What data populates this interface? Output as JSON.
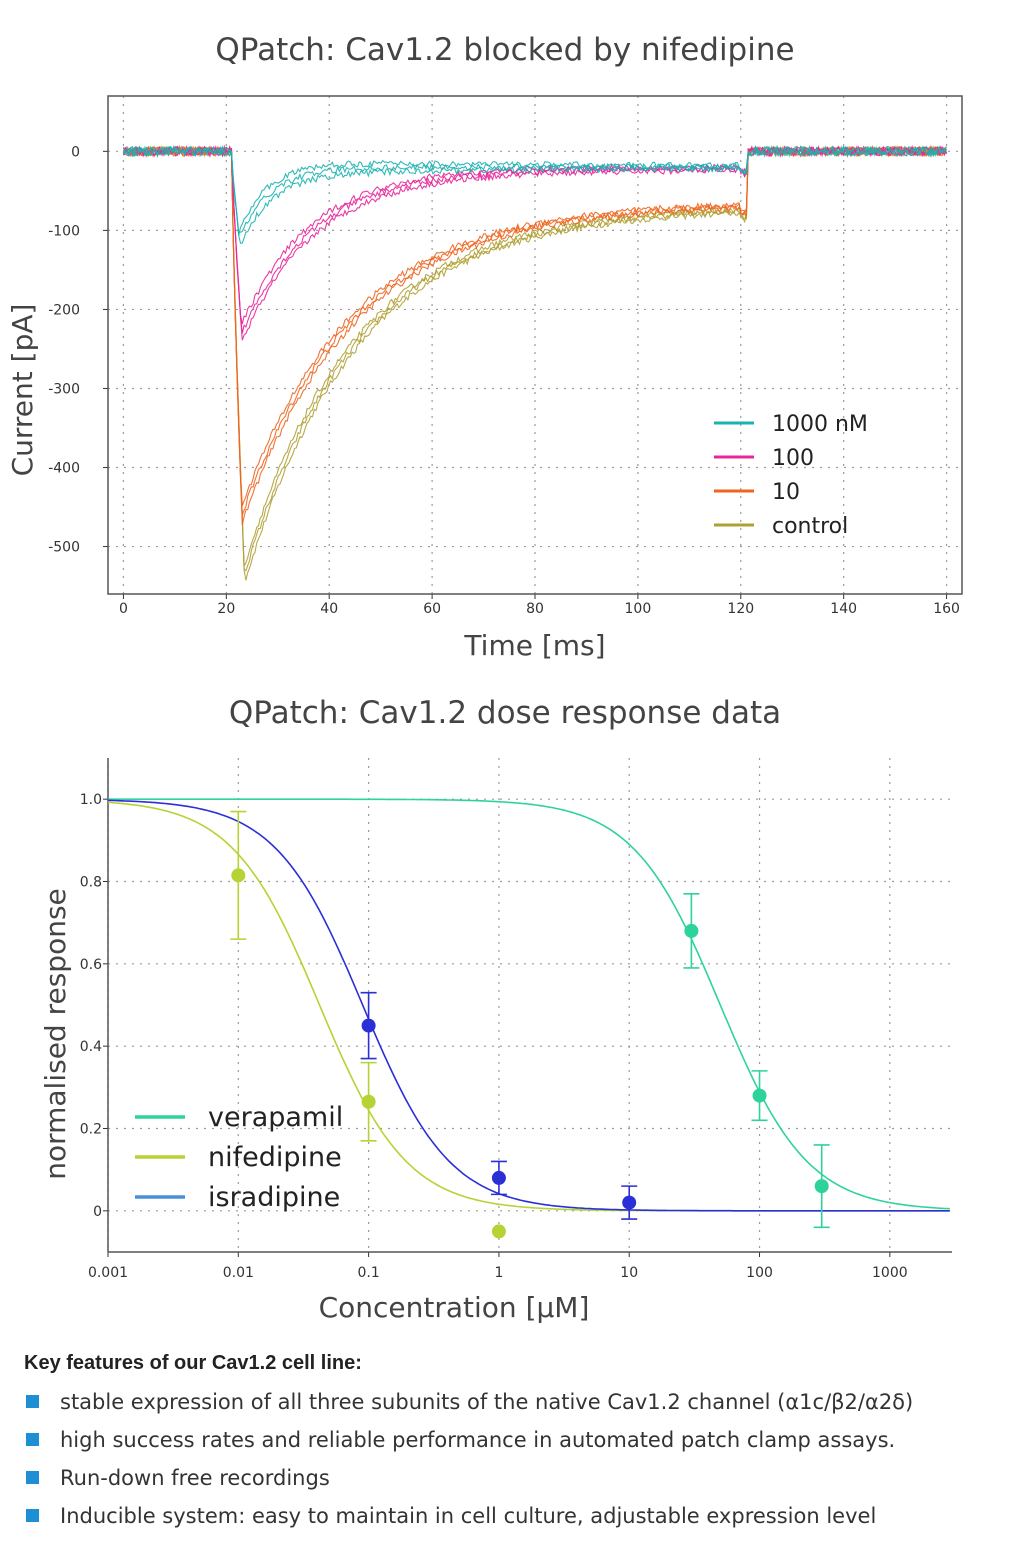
{
  "chart_data": [
    {
      "type": "line",
      "title": "QPatch: Cav1.2 blocked by nifedipine",
      "xlabel": "Time [ms]",
      "ylabel": "Current [pA]",
      "xlim": [
        -3,
        163
      ],
      "ylim": [
        -560,
        70
      ],
      "xticks": [
        0,
        20,
        40,
        60,
        80,
        100,
        120,
        140,
        160
      ],
      "yticks": [
        0,
        -100,
        -200,
        -300,
        -400,
        -500
      ],
      "grid": true,
      "legend_position": "bottom-right",
      "series": [
        {
          "name": "1000 nM",
          "color": "#1ab3b0",
          "peak_time": 22.5,
          "peak": -110,
          "late_current": -20
        },
        {
          "name": "100",
          "color": "#e8259a",
          "peak_time": 23,
          "peak": -230,
          "late_current": -22
        },
        {
          "name": "10",
          "color": "#f0651e",
          "peak_time": 23,
          "peak": -460,
          "late_current": -65
        },
        {
          "name": "control",
          "color": "#b0a034",
          "peak_time": 23.5,
          "peak": -535,
          "late_current": -70
        }
      ]
    },
    {
      "type": "scatter",
      "title": "QPatch: Cav1.2 dose response data",
      "xlabel": "Concentration [µM]",
      "ylabel": "normalised response",
      "xscale": "log",
      "xlim": [
        0.001,
        3000
      ],
      "ylim": [
        -0.1,
        1.1
      ],
      "xticks": [
        0.001,
        0.01,
        0.1,
        1,
        10,
        100,
        1000
      ],
      "xtick_labels": [
        "0.001",
        "0.01",
        "0.1",
        "1",
        "10",
        "100",
        "1000"
      ],
      "yticks": [
        1.0,
        0.8,
        0.6,
        0.4,
        0.2,
        0
      ],
      "ytick_labels": [
        "1.0",
        "0.8",
        "0.6",
        "0.4",
        "0.2",
        "0"
      ],
      "grid": true,
      "legend_position": "bottom-left",
      "series": [
        {
          "name": "verapamil",
          "color": "#2ed39c",
          "ic50": 50,
          "hill": 1.3,
          "points": [
            {
              "x": 30,
              "y": 0.68,
              "err": 0.09
            },
            {
              "x": 100,
              "y": 0.28,
              "err": 0.06
            },
            {
              "x": 300,
              "y": 0.06,
              "err": 0.1
            }
          ]
        },
        {
          "name": "nifedipine",
          "color": "#b5d334",
          "ic50": 0.042,
          "hill": 1.3,
          "points": [
            {
              "x": 0.01,
              "y": 0.815,
              "err": 0.155
            },
            {
              "x": 0.1,
              "y": 0.265,
              "err": 0.095
            },
            {
              "x": 1,
              "y": -0.05,
              "err": 0
            }
          ]
        },
        {
          "name": "isradipine",
          "color": "#2b2fd6",
          "legend_color": "#4a90d6",
          "ic50": 0.09,
          "hill": 1.3,
          "points": [
            {
              "x": 0.1,
              "y": 0.45,
              "err": 0.08
            },
            {
              "x": 1,
              "y": 0.08,
              "err": 0.04
            },
            {
              "x": 10,
              "y": 0.02,
              "err": 0.04
            }
          ]
        }
      ]
    }
  ],
  "features": {
    "heading": "Key features of our Cav1.2 cell line:",
    "items": [
      "stable expression of all three subunits of the native Cav1.2 channel (α1c/β2/α2δ)",
      "high success rates and reliable performance in automated patch clamp assays.",
      "Run-down free recordings",
      "Inducible system: easy to maintain in cell culture, adjustable expression level"
    ]
  }
}
